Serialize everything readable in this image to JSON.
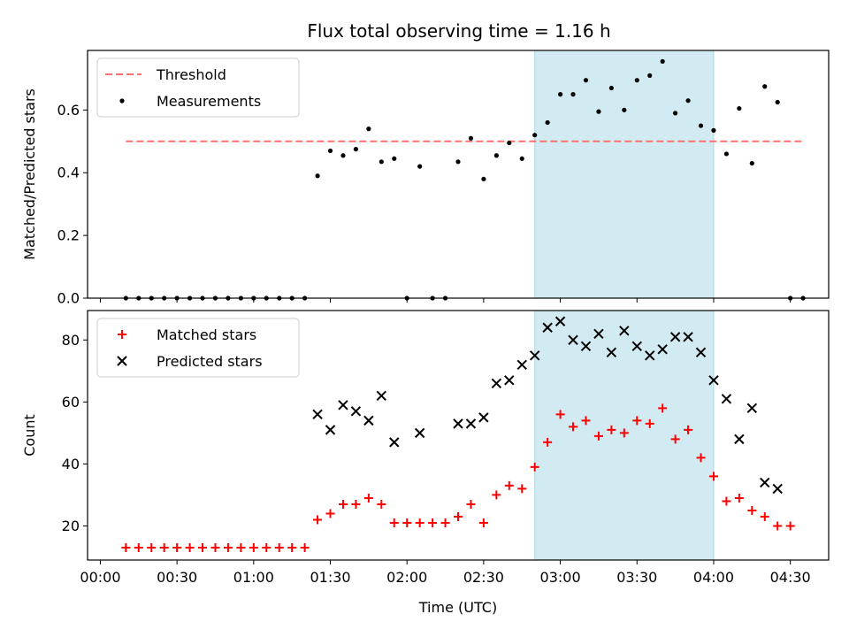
{
  "chart_data": {
    "title": "Flux total observing time = 1.16 h",
    "xlabel": "Time (UTC)",
    "x_ticks": [
      "00:00",
      "00:30",
      "01:00",
      "01:30",
      "02:00",
      "02:30",
      "03:00",
      "03:30",
      "04:00",
      "04:30"
    ],
    "x_range_min": [
      -5,
      285
    ],
    "highlight_min": [
      170,
      240
    ],
    "highlight_color": "#add8e6",
    "panels": [
      {
        "type": "scatter",
        "ylabel": "Matched/Predicted stars",
        "ylim": [
          0,
          0.79
        ],
        "y_ticks": [
          0,
          0.2,
          0.4,
          0.6
        ],
        "y_tick_labels": [
          "0.0",
          "0.2",
          "0.4",
          "0.6"
        ],
        "legend": "top-left",
        "series": [
          {
            "name": "Threshold",
            "kind": "dashed-line",
            "color": "#ff6f6f",
            "x": [
              10,
              275
            ],
            "y": [
              0.5,
              0.5
            ]
          },
          {
            "name": "Measurements",
            "kind": "dot",
            "color": "#000000",
            "x": [
              10,
              15,
              20,
              25,
              30,
              35,
              40,
              45,
              50,
              55,
              60,
              65,
              70,
              75,
              80,
              85,
              90,
              95,
              100,
              105,
              110,
              115,
              120,
              125,
              130,
              135,
              140,
              145,
              150,
              155,
              160,
              165,
              170,
              175,
              180,
              185,
              190,
              195,
              200,
              205,
              210,
              215,
              220,
              225,
              230,
              235,
              240,
              245,
              250,
              255,
              260,
              265,
              270,
              275
            ],
            "y": [
              0,
              0,
              0,
              0,
              0,
              0,
              0,
              0,
              0,
              0,
              0,
              0,
              0,
              0,
              0,
              0.39,
              0.47,
              0.455,
              0.475,
              0.54,
              0.435,
              0.445,
              0,
              0.42,
              0,
              0,
              0.435,
              0.51,
              0.38,
              0.455,
              0.495,
              0.445,
              0.52,
              0.56,
              0.65,
              0.65,
              0.695,
              0.595,
              0.67,
              0.6,
              0.695,
              0.71,
              0.755,
              0.59,
              0.63,
              0.55,
              0.535,
              0.46,
              0.605,
              0.43,
              0.675,
              0.625,
              0,
              0
            ]
          }
        ]
      },
      {
        "type": "scatter",
        "ylabel": "Count",
        "ylim": [
          9,
          89.5
        ],
        "y_ticks": [
          20,
          40,
          60,
          80
        ],
        "y_tick_labels": [
          "20",
          "40",
          "60",
          "80"
        ],
        "legend": "top-left",
        "series": [
          {
            "name": "Matched stars",
            "kind": "plus",
            "color": "#ff0000",
            "x": [
              10,
              15,
              20,
              25,
              30,
              35,
              40,
              45,
              50,
              55,
              60,
              65,
              70,
              75,
              80,
              85,
              90,
              95,
              100,
              105,
              110,
              115,
              120,
              125,
              130,
              135,
              140,
              145,
              150,
              155,
              160,
              165,
              170,
              175,
              180,
              185,
              190,
              195,
              200,
              205,
              210,
              215,
              220,
              225,
              230,
              235,
              240,
              245,
              250,
              255,
              260,
              265,
              270
            ],
            "y": [
              13,
              13,
              13,
              13,
              13,
              13,
              13,
              13,
              13,
              13,
              13,
              13,
              13,
              13,
              13,
              22,
              24,
              27,
              27,
              29,
              27,
              21,
              21,
              21,
              21,
              21,
              23,
              27,
              21,
              30,
              33,
              32,
              39,
              47,
              56,
              52,
              54,
              49,
              51,
              50,
              54,
              53,
              58,
              48,
              51,
              42,
              36,
              28,
              29,
              25,
              23,
              20,
              20
            ]
          },
          {
            "name": "Predicted stars",
            "kind": "cross",
            "color": "#000000",
            "x": [
              85,
              90,
              95,
              100,
              105,
              110,
              115,
              125,
              140,
              145,
              150,
              155,
              160,
              165,
              170,
              175,
              180,
              185,
              190,
              195,
              200,
              205,
              210,
              215,
              220,
              225,
              230,
              235,
              240,
              245,
              250,
              255,
              260,
              265
            ],
            "y": [
              56,
              51,
              59,
              57,
              54,
              62,
              47,
              50,
              53,
              53,
              55,
              66,
              67,
              72,
              75,
              84,
              86,
              80,
              78,
              82,
              76,
              83,
              78,
              75,
              77,
              81,
              81,
              76,
              67,
              61,
              48,
              58,
              34,
              32
            ]
          }
        ]
      }
    ]
  }
}
